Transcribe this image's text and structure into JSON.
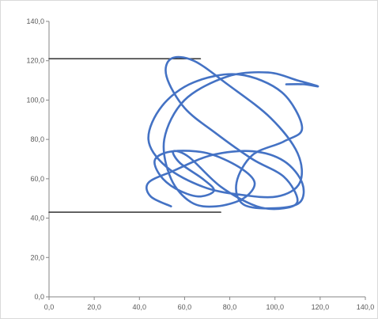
{
  "chart_data": {
    "type": "scatter",
    "title": "",
    "xlabel": "",
    "ylabel": "",
    "xlim": [
      0,
      140
    ],
    "ylim": [
      0,
      140
    ],
    "x_ticks": [
      "0,0",
      "20,0",
      "40,0",
      "60,0",
      "80,0",
      "100,0",
      "120,0",
      "140,0"
    ],
    "y_ticks": [
      "0,0",
      "20,0",
      "40,0",
      "60,0",
      "80,0",
      "100,0",
      "120,0",
      "140,0"
    ],
    "grid": false,
    "legend": "none",
    "series": [
      {
        "style": "smoothed-line",
        "color": "#4472c4",
        "x": [
          54,
          45,
          44,
          55,
          72,
          90,
          104,
          112,
          111,
          100,
          86,
          83,
          90,
          104,
          112,
          103,
          84,
          64,
          50,
          44,
          52,
          68,
          84,
          101,
          111,
          110,
          98,
          79,
          64,
          54,
          52,
          60,
          74,
          90,
          104,
          110,
          104,
          92,
          76,
          62,
          55,
          58,
          68,
          73,
          66,
          56,
          49,
          47,
          55,
          70,
          84,
          91,
          86,
          74,
          63,
          54,
          51,
          60,
          79,
          97,
          110,
          119,
          113,
          105
        ],
        "y": [
          46,
          51,
          58,
          64,
          72,
          74,
          69,
          58,
          48,
          45,
          47,
          58,
          72,
          79,
          86,
          104,
          113,
          109,
          97,
          80,
          66,
          56,
          52,
          51,
          58,
          73,
          91,
          108,
          120,
          121,
          112,
          96,
          83,
          70,
          61,
          49,
          45,
          46,
          56,
          71,
          74,
          68,
          60,
          54,
          51,
          55,
          62,
          70,
          74,
          73,
          66,
          58,
          50,
          46,
          48,
          60,
          80,
          100,
          112,
          114,
          110,
          107,
          108,
          108
        ]
      },
      {
        "style": "line",
        "color": "#404040",
        "x": [
          0,
          67
        ],
        "y": [
          121,
          121
        ]
      },
      {
        "style": "line",
        "color": "#404040",
        "x": [
          0,
          76
        ],
        "y": [
          43,
          43
        ]
      }
    ]
  }
}
